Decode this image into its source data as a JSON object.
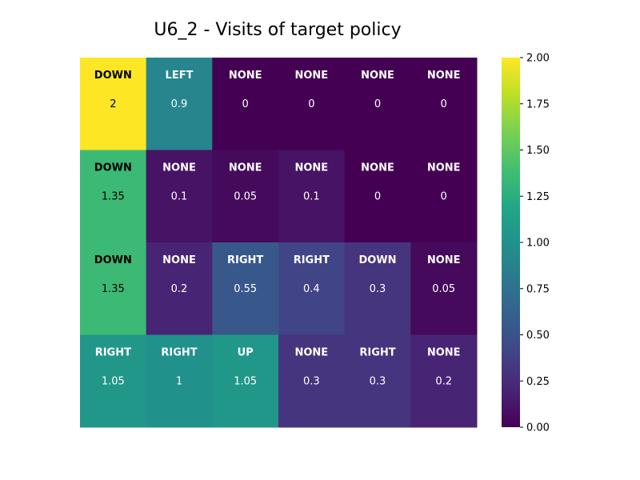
{
  "chart_data": {
    "type": "heatmap",
    "title": "U6_2 - Visits of target policy",
    "rows": 4,
    "cols": 6,
    "values": [
      [
        2,
        0.9,
        0,
        0,
        0,
        0
      ],
      [
        1.35,
        0.1,
        0.05,
        0.1,
        0,
        0
      ],
      [
        1.35,
        0.2,
        0.55,
        0.4,
        0.3,
        0.05
      ],
      [
        1.05,
        1,
        1.05,
        0.3,
        0.3,
        0.2
      ]
    ],
    "value_labels": [
      [
        "2",
        "0.9",
        "0",
        "0",
        "0",
        "0"
      ],
      [
        "1.35",
        "0.1",
        "0.05",
        "0.1",
        "0",
        "0"
      ],
      [
        "1.35",
        "0.2",
        "0.55",
        "0.4",
        "0.3",
        "0.05"
      ],
      [
        "1.05",
        "1",
        "1.05",
        "0.3",
        "0.3",
        "0.2"
      ]
    ],
    "actions": [
      [
        "DOWN",
        "LEFT",
        "NONE",
        "NONE",
        "NONE",
        "NONE"
      ],
      [
        "DOWN",
        "NONE",
        "NONE",
        "NONE",
        "NONE",
        "NONE"
      ],
      [
        "DOWN",
        "NONE",
        "RIGHT",
        "RIGHT",
        "DOWN",
        "NONE"
      ],
      [
        "RIGHT",
        "RIGHT",
        "UP",
        "NONE",
        "RIGHT",
        "NONE"
      ]
    ],
    "colormap": "viridis",
    "vmin": 0,
    "vmax": 2,
    "colorbar_ticks": [
      "0.00",
      "0.25",
      "0.50",
      "0.75",
      "1.00",
      "1.25",
      "1.50",
      "1.75",
      "2.00"
    ],
    "colorbar_tick_values": [
      0,
      0.25,
      0.5,
      0.75,
      1.0,
      1.25,
      1.5,
      1.75,
      2.0
    ],
    "xticks": false,
    "yticks": false
  }
}
